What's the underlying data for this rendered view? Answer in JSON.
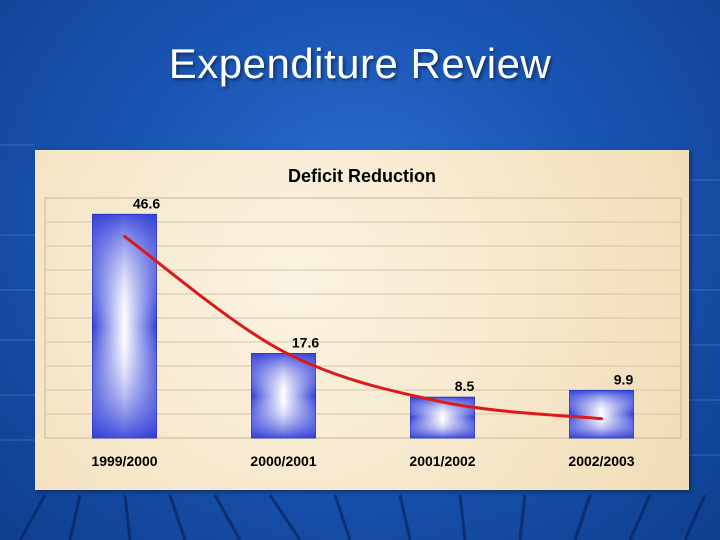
{
  "slide": {
    "title": "Expenditure Review"
  },
  "colors": {
    "background": "#1a55b4",
    "line": "#dd1a1a",
    "bar_edge": "#3340d8"
  },
  "chart_data": {
    "type": "bar",
    "title": "Deficit Reduction",
    "categories": [
      "1999/2000",
      "2000/2001",
      "2001/2002",
      "2002/2003"
    ],
    "values": [
      46.6,
      17.6,
      8.5,
      9.9
    ],
    "data_labels": [
      "46.6",
      "17.6",
      "8.5",
      "9.9"
    ],
    "trendline": {
      "type": "line",
      "values": [
        42,
        18,
        7.5,
        4
      ]
    },
    "ylim": [
      0,
      50
    ],
    "grid": true,
    "xlabel": "",
    "ylabel": ""
  }
}
